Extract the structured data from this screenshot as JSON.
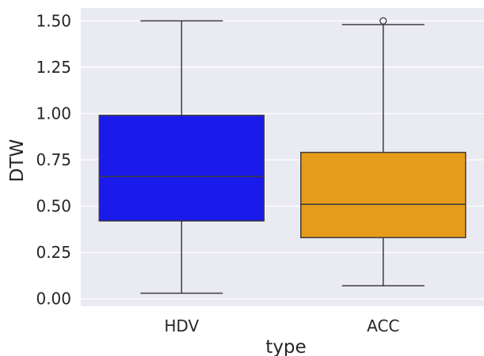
{
  "chart_data": {
    "type": "box",
    "xlabel": "type",
    "ylabel": "DTW",
    "ylim": [
      -0.04,
      1.57
    ],
    "yticks": [
      0.0,
      0.25,
      0.5,
      0.75,
      1.0,
      1.25,
      1.5
    ],
    "ytick_labels": [
      "0.00",
      "0.25",
      "0.50",
      "0.75",
      "1.00",
      "1.25",
      "1.50"
    ],
    "grid": true,
    "categories": [
      "HDV",
      "ACC"
    ],
    "boxes": [
      {
        "category": "HDV",
        "color": "#1a1aea",
        "whisker_low": 0.03,
        "q1": 0.42,
        "median": 0.66,
        "q3": 0.99,
        "whisker_high": 1.5,
        "outliers": []
      },
      {
        "category": "ACC",
        "color": "#e69b1a",
        "whisker_low": 0.07,
        "q1": 0.33,
        "median": 0.51,
        "q3": 0.79,
        "whisker_high": 1.48,
        "outliers": [
          1.5
        ]
      }
    ],
    "style": {
      "background": "#eaeaf2",
      "grid_color": "#ffffff",
      "line_color": "#3d3d3d"
    }
  }
}
